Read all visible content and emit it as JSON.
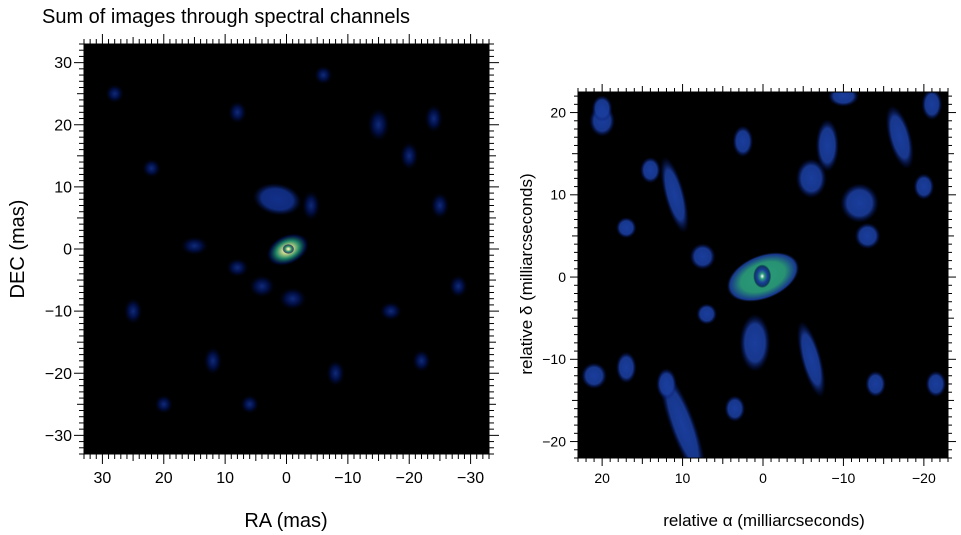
{
  "chart_data": [
    {
      "type": "heatmap",
      "title": "Sum of images through spectral channels",
      "xlabel": "RA (mas)",
      "ylabel": "DEC (mas)",
      "xlim": [
        33,
        -33
      ],
      "ylim": [
        -33,
        33
      ],
      "x_ticks": [
        30,
        20,
        10,
        0,
        -10,
        -20,
        -30
      ],
      "y_ticks": [
        -30,
        -20,
        -10,
        0,
        10,
        20,
        30
      ],
      "x_tick_labels": [
        "30",
        "20",
        "10",
        "0",
        "−10",
        "−20",
        "−30"
      ],
      "y_tick_labels": [
        "−30",
        "−20",
        "−10",
        "0",
        "10",
        "20",
        "30"
      ],
      "colormap": [
        "#000000",
        "#001050",
        "#12308a",
        "#1f8a6a",
        "#c8d88a",
        "#ffffff"
      ],
      "sources": [
        {
          "x": -0.2,
          "y": -0.1,
          "sx": 2.3,
          "sy": 1.5,
          "angle": -25,
          "peak": 1.0
        },
        {
          "x": -0.3,
          "y": 0.0,
          "sx": 0.6,
          "sy": 0.5,
          "angle": 0,
          "peak": 1.0
        },
        {
          "x": 1.5,
          "y": 8.0,
          "sx": 2.5,
          "sy": 1.6,
          "angle": 10,
          "peak": 0.32
        },
        {
          "x": -4.0,
          "y": 7.0,
          "sx": 1.0,
          "sy": 1.6,
          "angle": 0,
          "peak": 0.25
        },
        {
          "x": 4.0,
          "y": -6.0,
          "sx": 1.4,
          "sy": 1.2,
          "angle": 0,
          "peak": 0.25
        },
        {
          "x": -1.0,
          "y": -8.0,
          "sx": 1.5,
          "sy": 1.2,
          "angle": 0,
          "peak": 0.24
        },
        {
          "x": 8.0,
          "y": -3.0,
          "sx": 1.2,
          "sy": 1.0,
          "angle": 0,
          "peak": 0.2
        },
        {
          "x": 15.0,
          "y": 0.5,
          "sx": 1.5,
          "sy": 1.0,
          "angle": 0,
          "peak": 0.18
        },
        {
          "x": -15.0,
          "y": 20.0,
          "sx": 1.2,
          "sy": 1.8,
          "angle": 0,
          "peak": 0.18
        },
        {
          "x": -20.0,
          "y": 15.0,
          "sx": 1.0,
          "sy": 1.5,
          "angle": 0,
          "peak": 0.16
        },
        {
          "x": -24.0,
          "y": 21.0,
          "sx": 1.0,
          "sy": 1.5,
          "angle": 0,
          "peak": 0.16
        },
        {
          "x": 12.0,
          "y": -18.0,
          "sx": 1.0,
          "sy": 1.5,
          "angle": 0,
          "peak": 0.16
        },
        {
          "x": -25.0,
          "y": 7.0,
          "sx": 1.0,
          "sy": 1.4,
          "angle": 0,
          "peak": 0.16
        },
        {
          "x": -17.0,
          "y": -10.0,
          "sx": 1.2,
          "sy": 1.0,
          "angle": 0,
          "peak": 0.16
        },
        {
          "x": -22.0,
          "y": -18.0,
          "sx": 1.0,
          "sy": 1.2,
          "angle": 0,
          "peak": 0.16
        },
        {
          "x": 25.0,
          "y": -10.0,
          "sx": 1.0,
          "sy": 1.4,
          "angle": 0,
          "peak": 0.15
        },
        {
          "x": 22.0,
          "y": 13.0,
          "sx": 1.0,
          "sy": 1.0,
          "angle": 0,
          "peak": 0.14
        },
        {
          "x": 8.0,
          "y": 22.0,
          "sx": 1.0,
          "sy": 1.2,
          "angle": 0,
          "peak": 0.14
        },
        {
          "x": 6.0,
          "y": -25.0,
          "sx": 1.0,
          "sy": 1.0,
          "angle": 0,
          "peak": 0.14
        },
        {
          "x": -8.0,
          "y": -20.0,
          "sx": 1.0,
          "sy": 1.4,
          "angle": 0,
          "peak": 0.14
        },
        {
          "x": 20.0,
          "y": -25.0,
          "sx": 1.0,
          "sy": 1.0,
          "angle": 0,
          "peak": 0.13
        },
        {
          "x": -28.0,
          "y": -6.0,
          "sx": 1.0,
          "sy": 1.2,
          "angle": 0,
          "peak": 0.13
        },
        {
          "x": 28.0,
          "y": 25.0,
          "sx": 1.0,
          "sy": 1.0,
          "angle": 0,
          "peak": 0.12
        },
        {
          "x": -6.0,
          "y": 28.0,
          "sx": 1.0,
          "sy": 1.0,
          "angle": 0,
          "peak": 0.12
        }
      ]
    },
    {
      "type": "heatmap",
      "title": "",
      "xlabel": "relative α (milliarcseconds)",
      "ylabel": "relative δ (milliarcseconds)",
      "xlim": [
        23,
        -23
      ],
      "ylim": [
        -22,
        22.5
      ],
      "x_ticks": [
        20,
        10,
        0,
        -10,
        -20
      ],
      "y_ticks": [
        -20,
        -10,
        0,
        10,
        20
      ],
      "x_tick_labels": [
        "20",
        "10",
        "0",
        "−10",
        "−20"
      ],
      "y_tick_labels": [
        "−20",
        "−10",
        "0",
        "10",
        "20"
      ],
      "colormap": [
        "#000000",
        "#001060",
        "#1a3d9c",
        "#2a9a78",
        "#ffffff"
      ],
      "sources": [
        {
          "x": 0.0,
          "y": 0.0,
          "sx": 3.0,
          "sy": 1.7,
          "angle": -22,
          "peak": 0.9
        },
        {
          "x": 0.1,
          "y": 0.1,
          "sx": 0.7,
          "sy": 0.9,
          "angle": 0,
          "peak": 1.2
        },
        {
          "x": 1.0,
          "y": -8.0,
          "sx": 1.2,
          "sy": 2.2,
          "angle": 0,
          "peak": 0.45
        },
        {
          "x": 10.0,
          "y": -18.0,
          "sx": 1.0,
          "sy": 4.5,
          "angle": -20,
          "peak": 0.42
        },
        {
          "x": -6.0,
          "y": -10.0,
          "sx": 0.8,
          "sy": 3.0,
          "angle": -15,
          "peak": 0.4
        },
        {
          "x": 11.0,
          "y": 10.0,
          "sx": 0.8,
          "sy": 3.0,
          "angle": -15,
          "peak": 0.4
        },
        {
          "x": -8.0,
          "y": 16.0,
          "sx": 0.9,
          "sy": 2.0,
          "angle": 0,
          "peak": 0.4
        },
        {
          "x": -6.0,
          "y": 12.0,
          "sx": 1.2,
          "sy": 1.5,
          "angle": 0,
          "peak": 0.38
        },
        {
          "x": -12.0,
          "y": 9.0,
          "sx": 1.5,
          "sy": 1.5,
          "angle": 0,
          "peak": 0.38
        },
        {
          "x": -17.0,
          "y": 17.0,
          "sx": 0.9,
          "sy": 2.5,
          "angle": -15,
          "peak": 0.4
        },
        {
          "x": 20.0,
          "y": 19.0,
          "sx": 1.0,
          "sy": 1.2,
          "angle": 0,
          "peak": 0.38
        },
        {
          "x": 14.0,
          "y": 13.0,
          "sx": 0.8,
          "sy": 1.0,
          "angle": 0,
          "peak": 0.36
        },
        {
          "x": 2.5,
          "y": 16.5,
          "sx": 0.8,
          "sy": 1.2,
          "angle": 0,
          "peak": 0.38
        },
        {
          "x": 17.0,
          "y": 6.0,
          "sx": 0.8,
          "sy": 0.8,
          "angle": 0,
          "peak": 0.36
        },
        {
          "x": -13.0,
          "y": 5.0,
          "sx": 1.0,
          "sy": 1.0,
          "angle": 0,
          "peak": 0.36
        },
        {
          "x": 7.5,
          "y": 2.5,
          "sx": 1.0,
          "sy": 1.0,
          "angle": 0,
          "peak": 0.36
        },
        {
          "x": -20.0,
          "y": 11.0,
          "sx": 0.8,
          "sy": 1.0,
          "angle": 0,
          "peak": 0.36
        },
        {
          "x": 17.0,
          "y": -11.0,
          "sx": 0.8,
          "sy": 1.2,
          "angle": 0,
          "peak": 0.36
        },
        {
          "x": 12.0,
          "y": -13.0,
          "sx": 0.8,
          "sy": 1.2,
          "angle": 0,
          "peak": 0.36
        },
        {
          "x": -14.0,
          "y": -13.0,
          "sx": 0.8,
          "sy": 1.0,
          "angle": 0,
          "peak": 0.36
        },
        {
          "x": 3.5,
          "y": -16.0,
          "sx": 0.8,
          "sy": 1.0,
          "angle": 0,
          "peak": 0.36
        },
        {
          "x": 7.0,
          "y": -4.5,
          "sx": 0.8,
          "sy": 0.8,
          "angle": 0,
          "peak": 0.34
        },
        {
          "x": 21.0,
          "y": -12.0,
          "sx": 1.0,
          "sy": 1.0,
          "angle": 0,
          "peak": 0.34
        },
        {
          "x": 20.0,
          "y": 20.5,
          "sx": 0.8,
          "sy": 1.0,
          "angle": 0,
          "peak": 0.34
        },
        {
          "x": -21.0,
          "y": 21.0,
          "sx": 0.8,
          "sy": 1.2,
          "angle": 0,
          "peak": 0.34
        },
        {
          "x": -10.0,
          "y": 22.0,
          "sx": 1.2,
          "sy": 0.8,
          "angle": 0,
          "peak": 0.34
        },
        {
          "x": -21.5,
          "y": -13.0,
          "sx": 0.8,
          "sy": 1.0,
          "angle": 0,
          "peak": 0.34
        }
      ]
    }
  ]
}
